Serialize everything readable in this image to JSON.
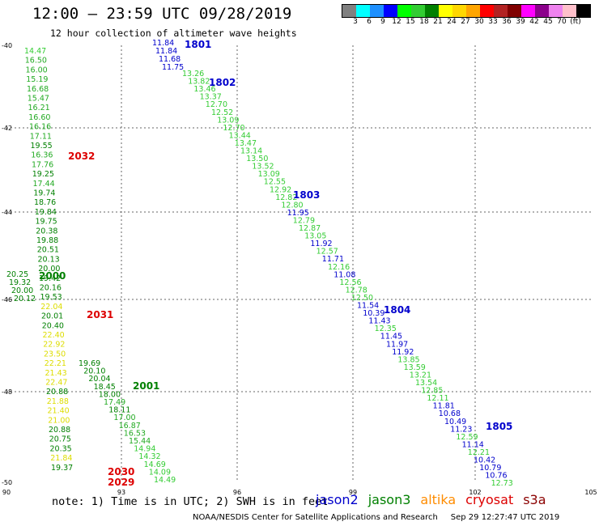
{
  "header": {
    "title": "12:00 – 23:59 UTC 09/28/2019",
    "subtitle": "12 hour collection of altimeter wave heights"
  },
  "legend": {
    "colors": [
      "#808080",
      "#00ffff",
      "#1e90ff",
      "#0000ff",
      "#00ff00",
      "#32cd32",
      "#008000",
      "#ffff00",
      "#ffd700",
      "#ffa500",
      "#ff0000",
      "#b22222",
      "#800000",
      "#ff00ff",
      "#8b008b",
      "#ee82ee",
      "#ffc0cb",
      "#000000"
    ],
    "labels": [
      "3",
      "6",
      "9",
      "12",
      "15",
      "18",
      "21",
      "24",
      "27",
      "30",
      "33",
      "36",
      "39",
      "42",
      "45",
      "70",
      "(ft)"
    ]
  },
  "axes": {
    "lon_ticks": [
      "90",
      "93",
      "96",
      "99",
      "102",
      "105"
    ],
    "lat_ticks": [
      "-40",
      "-42",
      "-44",
      "-46",
      "-48",
      "-50"
    ]
  },
  "passes": [
    {
      "label": "1801",
      "color": "#0000cc"
    },
    {
      "label": "1802",
      "color": "#0000cc"
    },
    {
      "label": "1803",
      "color": "#0000cc"
    },
    {
      "label": "1804",
      "color": "#0000cc"
    },
    {
      "label": "1805",
      "color": "#0000cc"
    },
    {
      "label": "2032",
      "color": "#dd0000"
    },
    {
      "label": "2031",
      "color": "#dd0000"
    },
    {
      "label": "2030",
      "color": "#dd0000"
    },
    {
      "label": "2029",
      "color": "#dd0000"
    },
    {
      "label": "2000",
      "color": "#008000"
    },
    {
      "label": "2001",
      "color": "#008000"
    }
  ],
  "tracks": [
    {
      "name": "left-track",
      "values": [
        "14.47",
        "16.50",
        "16.00",
        "15.19",
        "16.68",
        "15.47",
        "16.21",
        "16.60",
        "16.16",
        "17.11",
        "19.55",
        "16.36",
        "17.76",
        "19.25",
        "17.44",
        "19.74",
        "18.76",
        "19.84",
        "19.75",
        "20.38",
        "19.88",
        "20.51",
        "20.13",
        "20.00",
        "19.42",
        "20.16",
        "19.53",
        "22.04",
        "20.01",
        "20.40",
        "22.40",
        "22.92",
        "23.50",
        "22.21",
        "21.43",
        "22.47",
        "20.88",
        "21.88",
        "21.40",
        "21.00",
        "20.88",
        "20.75",
        "20.35",
        "21.84",
        "19.37"
      ]
    },
    {
      "name": "left-track-west",
      "values": [
        "20.25",
        "19.32",
        "20.00",
        "20.12"
      ]
    },
    {
      "name": "middle-track-jason2",
      "values": [
        "11.84",
        "11.84",
        "11.68",
        "11.75"
      ]
    },
    {
      "name": "middle-track",
      "values": [
        "13.26",
        "13.82",
        "13.46",
        "13.37",
        "12.70",
        "12.52",
        "13.09",
        "12.70",
        "13.44",
        "13.47",
        "13.14",
        "13.50",
        "13.52",
        "13.09",
        "12.55",
        "12.92",
        "12.82",
        "12.80",
        "11.95",
        "12.79",
        "12.87",
        "13.05",
        "11.92",
        "12.57",
        "11.71",
        "12.16",
        "11.08",
        "12.56",
        "12.78",
        "12.50",
        "11.54",
        "10.39",
        "11.43",
        "12.35",
        "11.45",
        "11.97",
        "11.92",
        "13.85",
        "13.59",
        "13.21",
        "13.54",
        "12.85",
        "12.11",
        "11.81",
        "10.68",
        "10.49",
        "11.23",
        "12.59",
        "11.14",
        "12.21",
        "10.42",
        "10.79",
        "10.76",
        "12.73"
      ]
    },
    {
      "name": "lower-track",
      "values": [
        "19.69",
        "20.10",
        "20.04",
        "18.45",
        "18.00",
        "17.49",
        "18.11",
        "17.00",
        "16.87",
        "16.53",
        "15.44",
        "14.94",
        "14.32",
        "14.69",
        "14.09",
        "14.49"
      ]
    }
  ],
  "footer": {
    "note": "note: 1) Time is in UTC; 2) SWH is in feet",
    "satellites": [
      {
        "name": "jason2",
        "color": "#0000cc"
      },
      {
        "name": "jason3",
        "color": "#008000"
      },
      {
        "name": "altika",
        "color": "#ff8c00"
      },
      {
        "name": "cryosat",
        "color": "#dd0000"
      },
      {
        "name": "s3a",
        "color": "#8b0000"
      }
    ],
    "credit": "NOAA/NESDIS Center for Satellite Applications and Research",
    "timestamp": "Sep 29 12:27:47 UTC 2019"
  }
}
